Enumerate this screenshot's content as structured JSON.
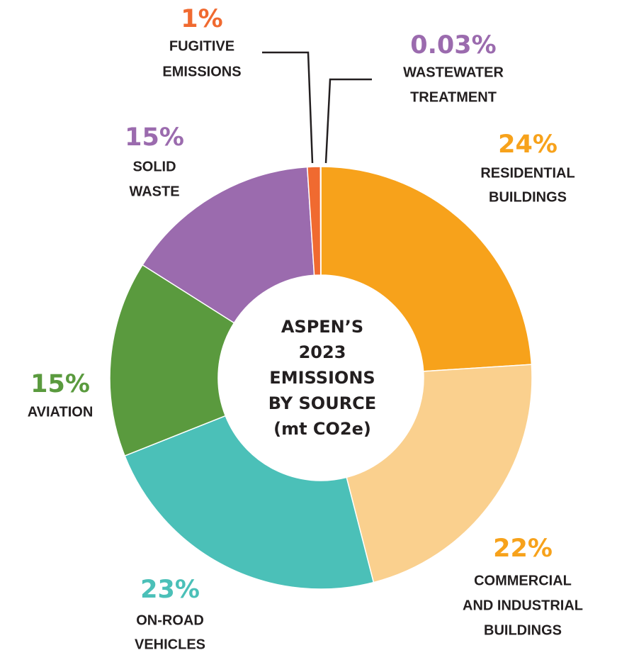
{
  "chart_data": {
    "type": "donut",
    "title": [
      "ASPEN’S",
      "2023",
      "EMISSIONS",
      "BY SOURCE",
      "(mt CO2e)"
    ],
    "categories": [
      [
        "RESIDENTIAL",
        "BUILDINGS"
      ],
      [
        "COMMERCIAL",
        "AND INDUSTRIAL",
        "BUILDINGS"
      ],
      [
        "ON-ROAD",
        "VEHICLES"
      ],
      [
        "AVIATION"
      ],
      [
        "SOLID",
        "WASTE"
      ],
      [
        "FUGITIVE",
        "EMISSIONS"
      ],
      [
        "WASTEWATER",
        "TREATMENT"
      ]
    ],
    "values": [
      24,
      22,
      23,
      15,
      15,
      1,
      0.03
    ],
    "value_labels": [
      "24%",
      "22%",
      "23%",
      "15%",
      "15%",
      "1%",
      "0.03%"
    ],
    "colors": [
      "#f7a21b",
      "#fad08e",
      "#4bc0b8",
      "#5a9a3e",
      "#9b6bae",
      "#f06a30",
      "#9b6bae"
    ],
    "label_colors": [
      "#f7a21b",
      "#f7a21b",
      "#4bc0b8",
      "#5a9a3e",
      "#9b6bae",
      "#f06a30",
      "#9b6bae"
    ]
  }
}
